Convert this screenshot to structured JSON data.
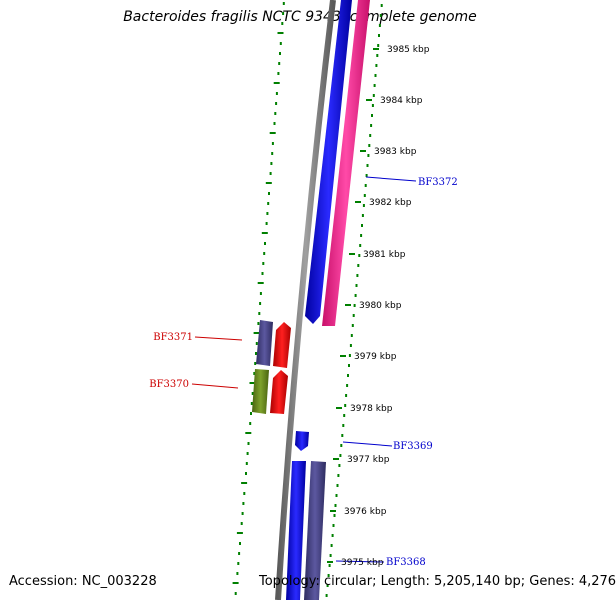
{
  "title": "Bacteroides fragilis NCTC 9343, complete genome",
  "accession_text": "Accession: NC_003228",
  "topology_text": "Topology: circular; Length: 5,205,140 bp; Genes: 4,276",
  "scale_ticks": [
    "3985 kbp",
    "3984 kbp",
    "3983 kbp",
    "3982 kbp",
    "3981 kbp",
    "3980 kbp",
    "3979 kbp",
    "3978 kbp",
    "3977 kbp",
    "3976 kbp",
    "3975 kbp"
  ],
  "gene_labels": [
    {
      "name": "BF3372",
      "strand": "forward",
      "color": "#0000cc"
    },
    {
      "name": "BF3371",
      "strand": "reverse",
      "color": "#cc0000"
    },
    {
      "name": "BF3370",
      "strand": "reverse",
      "color": "#cc0000"
    },
    {
      "name": "BF3369",
      "strand": "forward",
      "color": "#0000cc"
    },
    {
      "name": "BF3368",
      "strand": "forward",
      "color": "#0000cc"
    }
  ],
  "colors": {
    "backbone": "#808080",
    "forward_cds": "#0000ff",
    "forward_feature": "#ff2e9a",
    "reverse_cds": "#ff0000",
    "reverse_feature_a": "#4d4a8c",
    "reverse_feature_b": "#6b8e23",
    "forward_feature_b": "#4d4a8c",
    "gc_ticks": "#008000",
    "forward_label": "#0000cc",
    "reverse_label": "#cc0000"
  }
}
